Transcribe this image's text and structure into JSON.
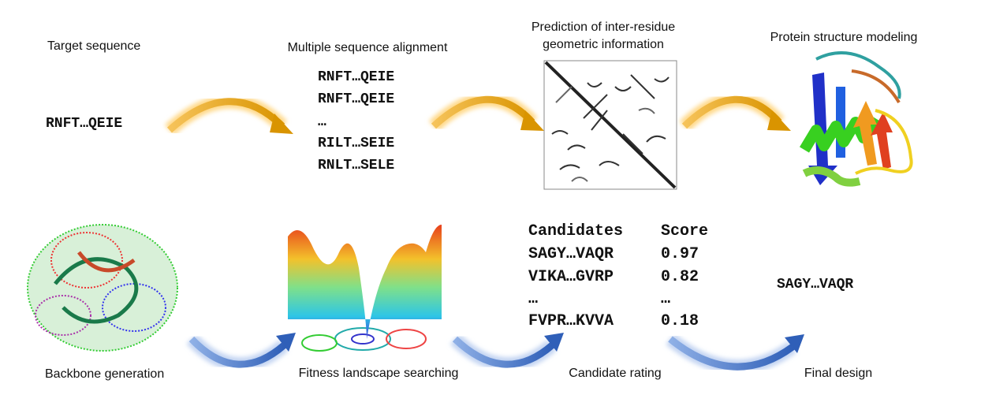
{
  "top": {
    "target": {
      "title": "Target sequence",
      "sequence": "RNFT…QEIE"
    },
    "msa": {
      "title": "Multiple sequence alignment",
      "sequences": [
        "RNFT…QEIE",
        "RNFT…QEIE",
        "…",
        "RILT…SEIE",
        "RNLT…SELE"
      ]
    },
    "prediction": {
      "title_lines": [
        "Prediction of inter-residue",
        "geometric information"
      ]
    },
    "modeling": {
      "title": "Protein structure modeling"
    }
  },
  "bottom": {
    "backbone": {
      "title": "Backbone generation"
    },
    "landscape": {
      "title": "Fitness landscape searching"
    },
    "rating": {
      "title": "Candidate rating",
      "table": {
        "header": [
          "Candidates",
          "Score"
        ],
        "rows": [
          [
            "SAGY…VAQR",
            "0.97"
          ],
          [
            "VIKA…GVRP",
            "0.82"
          ],
          [
            "…",
            "…"
          ],
          [
            "FVPR…KVVA",
            "0.18"
          ]
        ]
      }
    },
    "final": {
      "title": "Final design",
      "sequence": "SAGY…VAQR"
    }
  }
}
